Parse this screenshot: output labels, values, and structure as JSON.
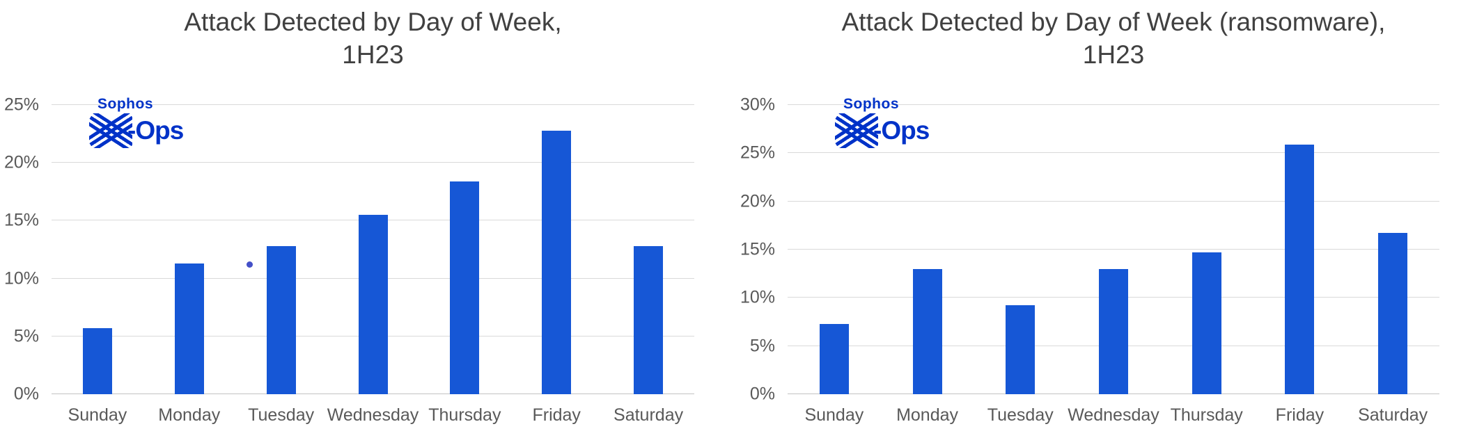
{
  "page": {
    "background": "#ffffff"
  },
  "logo": {
    "sophos": "Sophos",
    "ops": "-Ops"
  },
  "colors": {
    "bar": "#1657d6",
    "grid": "#d9d9d9",
    "axis_line": "#c2c2c2",
    "title": "#404040",
    "tick": "#595959",
    "logo": "#0032c8",
    "dot": "#4450c8"
  },
  "chart_data": [
    {
      "type": "bar",
      "title": [
        "Attack Detected by Day of Week,",
        "1H23"
      ],
      "categories": [
        "Sunday",
        "Monday",
        "Tuesday",
        "Wednesday",
        "Thursday",
        "Friday",
        "Saturday"
      ],
      "values": [
        5.7,
        11.3,
        12.8,
        15.5,
        18.4,
        22.8,
        12.8
      ],
      "ylim": [
        0,
        25
      ],
      "ytick_step": 5,
      "ytick_labels": [
        "0%",
        "5%",
        "10%",
        "15%",
        "20%",
        "25%"
      ],
      "grid": true,
      "legend": "none",
      "bar_color": "#1657d6",
      "annotation_dot": {
        "slot_fraction": 0.308,
        "value": 11.2
      }
    },
    {
      "type": "bar",
      "title": [
        "Attack Detected by Day of Week (ransomware),",
        "1H23"
      ],
      "categories": [
        "Sunday",
        "Monday",
        "Tuesday",
        "Wednesday",
        "Thursday",
        "Friday",
        "Saturday"
      ],
      "values": [
        7.3,
        13.0,
        9.2,
        13.0,
        14.7,
        25.9,
        16.7
      ],
      "ylim": [
        0,
        30
      ],
      "ytick_step": 5,
      "ytick_labels": [
        "0%",
        "5%",
        "10%",
        "15%",
        "20%",
        "25%",
        "30%"
      ],
      "grid": true,
      "legend": "none",
      "bar_color": "#1657d6"
    }
  ]
}
